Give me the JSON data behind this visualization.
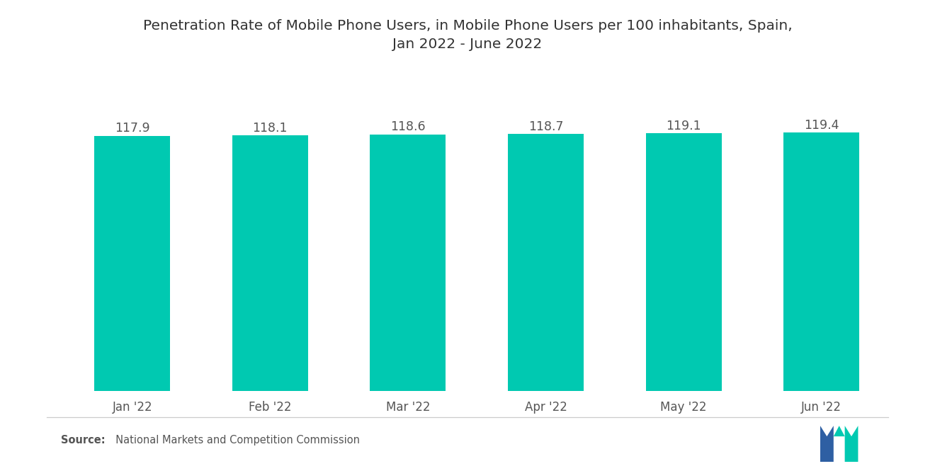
{
  "title": "Penetration Rate of Mobile Phone Users, in Mobile Phone Users per 100 inhabitants, Spain,\nJan 2022 - June 2022",
  "categories": [
    "Jan '22",
    "Feb '22",
    "Mar '22",
    "Apr '22",
    "May '22",
    "Jun '22"
  ],
  "values": [
    117.9,
    118.1,
    118.6,
    118.7,
    119.1,
    119.4
  ],
  "bar_color": "#00C9B1",
  "title_fontsize": 14.5,
  "label_fontsize": 12,
  "value_fontsize": 12.5,
  "source_bold": "Source:",
  "source_normal": "  National Markets and Competition Commission",
  "ylim_min": 0,
  "ylim_max": 135,
  "background_color": "#ffffff",
  "bar_width": 0.55,
  "logo_blue": "#2E5FA3",
  "logo_teal": "#00C9B1"
}
